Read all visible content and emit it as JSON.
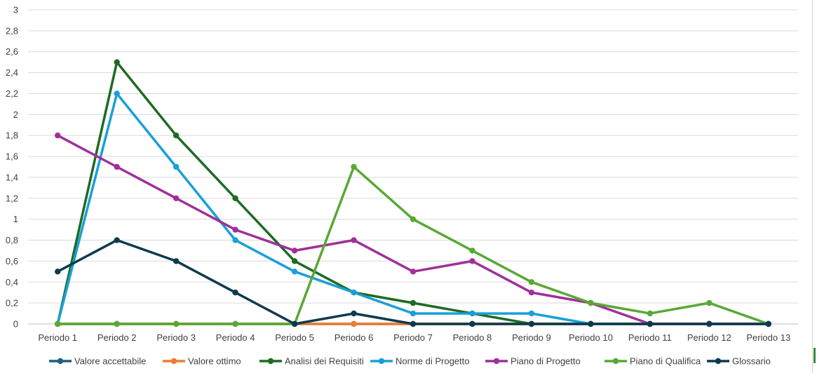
{
  "chart_data": {
    "type": "line",
    "title": "",
    "xlabel": "",
    "ylabel": "",
    "ylim": [
      0,
      3
    ],
    "yticks": [
      "0",
      "0,2",
      "0,4",
      "0,6",
      "0,8",
      "1",
      "1,2",
      "1,4",
      "1,6",
      "1,8",
      "2",
      "2,2",
      "2,4",
      "2,6",
      "2,8",
      "3"
    ],
    "categories": [
      "Periodo 1",
      "Periodo 2",
      "Periodo 3",
      "Periodo 4",
      "Periodo 5",
      "Periodo 6",
      "Periodo 7",
      "Periodo 8",
      "Periodo 9",
      "Periodo 10",
      "Periodo 11",
      "Periodo 12",
      "Periodo 13"
    ],
    "legend_position": "bottom",
    "series": [
      {
        "name": "Valore accettabile",
        "color": "#1f5f7a",
        "values": [
          0,
          0,
          0,
          0,
          0,
          0,
          0,
          0,
          0,
          0,
          0,
          0,
          0
        ]
      },
      {
        "name": "Valore ottimo",
        "color": "#ed7d31",
        "values": [
          0,
          0,
          0,
          0,
          0,
          0,
          0,
          0,
          0,
          0,
          0,
          0,
          0
        ]
      },
      {
        "name": "Analisi dei Requisiti",
        "color": "#1e6b24",
        "values": [
          0,
          2.5,
          1.8,
          1.2,
          0.6,
          0.3,
          0.2,
          0.1,
          0,
          0,
          0,
          0,
          0
        ]
      },
      {
        "name": "Norme di Progetto",
        "color": "#1aa0d8",
        "values": [
          0,
          2.2,
          1.5,
          0.8,
          0.5,
          0.3,
          0.1,
          0.1,
          0.1,
          0,
          0,
          0,
          0
        ]
      },
      {
        "name": "Piano di Progetto",
        "color": "#a0309a",
        "values": [
          1.8,
          1.5,
          1.2,
          0.9,
          0.7,
          0.8,
          0.5,
          0.6,
          0.3,
          0.2,
          0,
          0,
          0
        ]
      },
      {
        "name": "Piano di Qualifica",
        "color": "#59a835",
        "values": [
          0,
          0,
          0,
          0,
          0,
          1.5,
          1.0,
          0.7,
          0.4,
          0.2,
          0.1,
          0.2,
          0
        ]
      },
      {
        "name": "Glossario",
        "color": "#0e3a4e",
        "values": [
          0.5,
          0.8,
          0.6,
          0.3,
          0,
          0.1,
          0,
          0,
          0,
          0,
          0,
          0,
          0
        ]
      }
    ]
  }
}
